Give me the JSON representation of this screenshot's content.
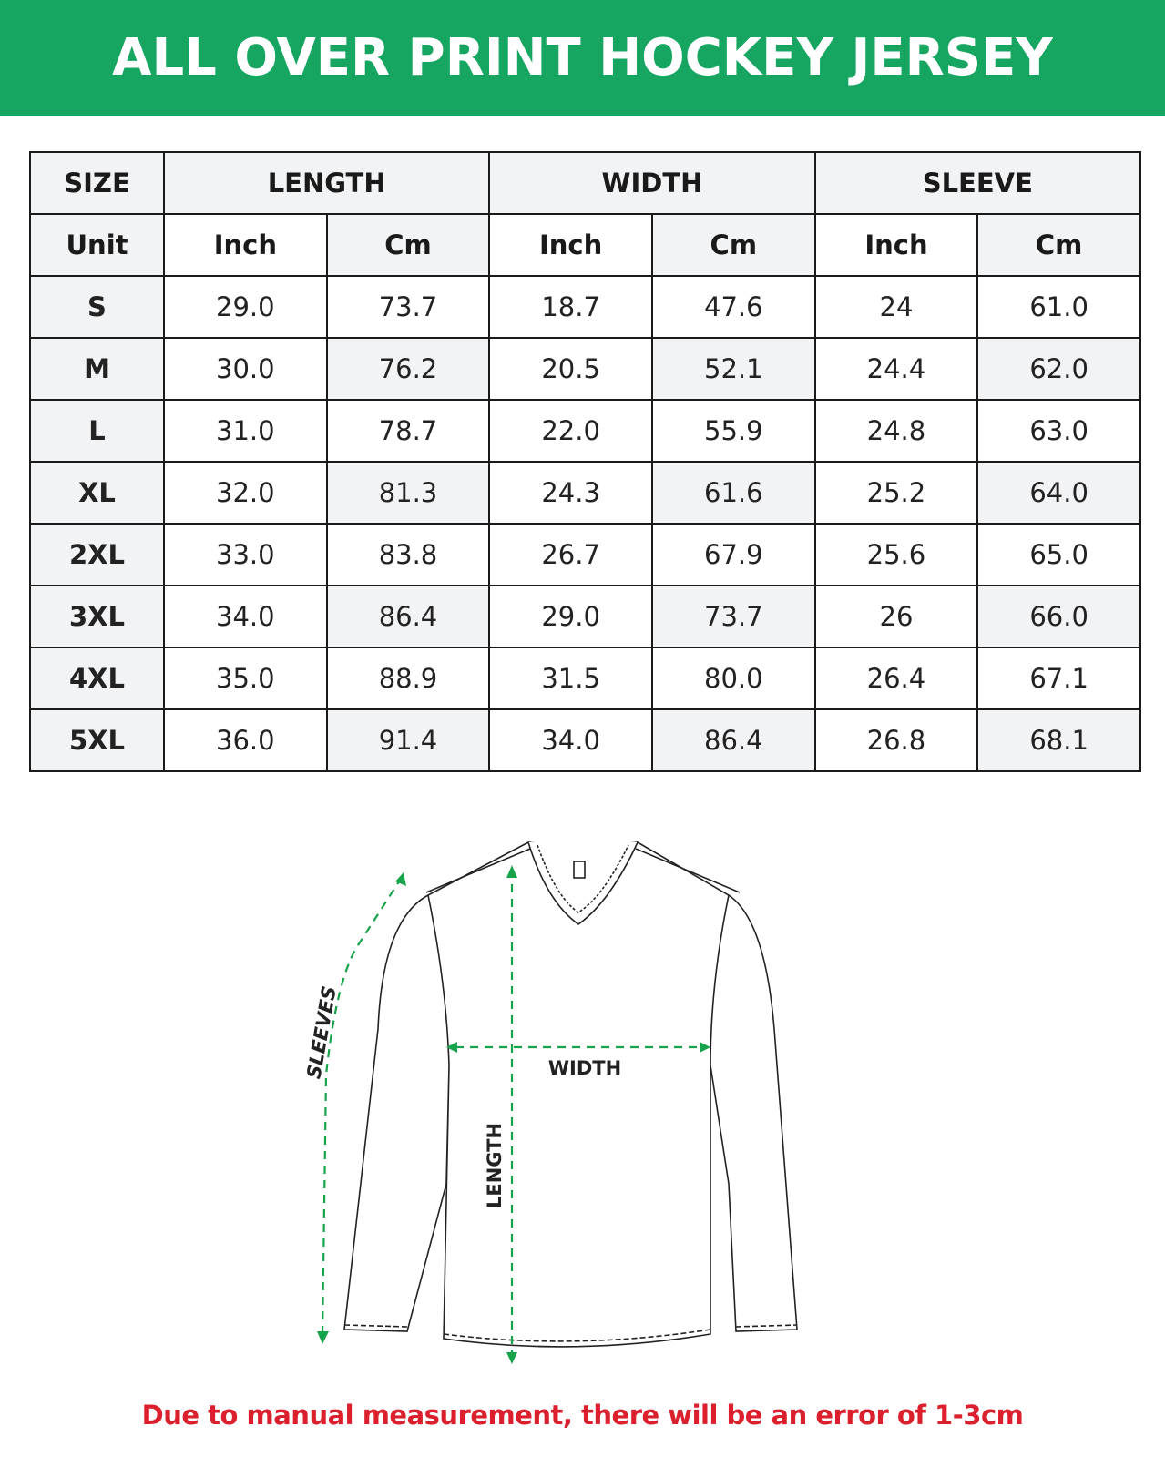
{
  "title": "ALL OVER PRINT HOCKEY JERSEY",
  "table": {
    "groups": [
      "SIZE",
      "LENGTH",
      "WIDTH",
      "SLEEVE"
    ],
    "unit_label": "Unit",
    "units": [
      "Inch",
      "Cm",
      "Inch",
      "Cm",
      "Inch",
      "Cm"
    ],
    "rows": [
      {
        "size": "S",
        "values": [
          "29.0",
          "73.7",
          "18.7",
          "47.6",
          "24",
          "61.0"
        ]
      },
      {
        "size": "M",
        "values": [
          "30.0",
          "76.2",
          "20.5",
          "52.1",
          "24.4",
          "62.0"
        ]
      },
      {
        "size": "L",
        "values": [
          "31.0",
          "78.7",
          "22.0",
          "55.9",
          "24.8",
          "63.0"
        ]
      },
      {
        "size": "XL",
        "values": [
          "32.0",
          "81.3",
          "24.3",
          "61.6",
          "25.2",
          "64.0"
        ]
      },
      {
        "size": "2XL",
        "values": [
          "33.0",
          "83.8",
          "26.7",
          "67.9",
          "25.6",
          "65.0"
        ]
      },
      {
        "size": "3XL",
        "values": [
          "34.0",
          "86.4",
          "29.0",
          "73.7",
          "26",
          "66.0"
        ]
      },
      {
        "size": "4XL",
        "values": [
          "35.0",
          "88.9",
          "31.5",
          "80.0",
          "26.4",
          "67.1"
        ]
      },
      {
        "size": "5XL",
        "values": [
          "36.0",
          "91.4",
          "34.0",
          "86.4",
          "26.8",
          "68.1"
        ]
      }
    ]
  },
  "diagram": {
    "sleeves_label": "SLEEVES",
    "width_label": "WIDTH",
    "length_label": "LENGTH",
    "arrow_color": "#16a34a"
  },
  "note": "Due to manual measurement, there will be an error of 1-3cm",
  "colors": {
    "brand": "#16a662",
    "note": "#dc1f2d"
  }
}
